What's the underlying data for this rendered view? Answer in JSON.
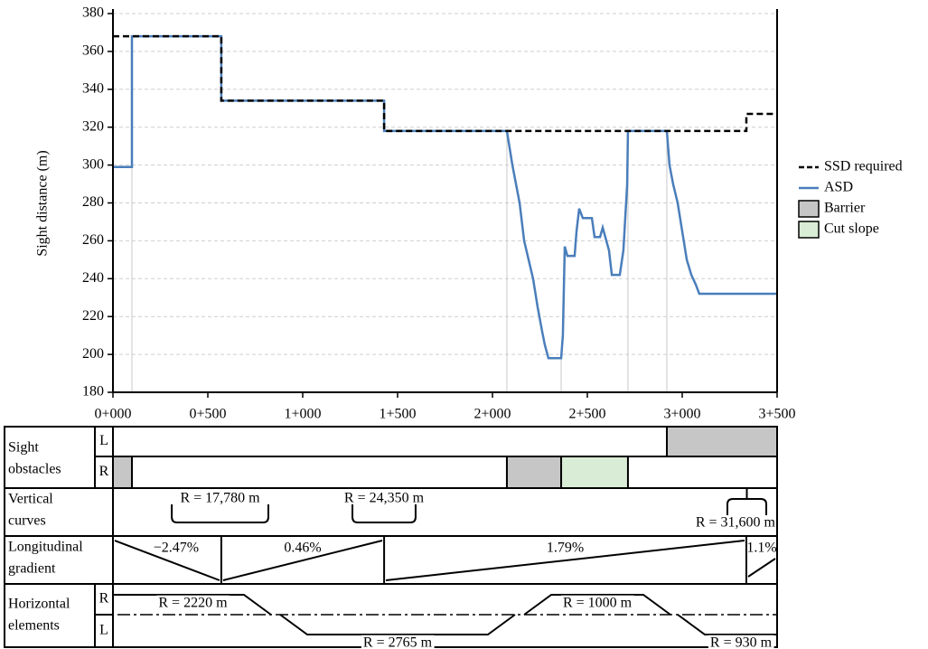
{
  "chart_data": {
    "type": "line",
    "y_label": "Sight distance (m)",
    "xlim": [
      0,
      3500
    ],
    "ylim": [
      180,
      380
    ],
    "xticks": [
      {
        "value": 0,
        "label": "0+000"
      },
      {
        "value": 500,
        "label": "0+500"
      },
      {
        "value": 1000,
        "label": "1+000"
      },
      {
        "value": 1500,
        "label": "1+500"
      },
      {
        "value": 2000,
        "label": "2+000"
      },
      {
        "value": 2500,
        "label": "2+500"
      },
      {
        "value": 3000,
        "label": "3+000"
      },
      {
        "value": 3500,
        "label": "3+500"
      }
    ],
    "yticks": [
      180,
      200,
      220,
      240,
      260,
      280,
      300,
      320,
      340,
      360,
      380
    ],
    "grid": true,
    "reference_x": [
      100,
      2076,
      2362,
      2714,
      2919
    ],
    "series": [
      {
        "name": "SSD required",
        "color": "#000000",
        "dashed": true,
        "x": [
          0,
          571,
          571,
          1429,
          1429,
          3338,
          3338,
          3500
        ],
        "values": [
          368,
          368,
          334,
          334,
          318,
          318,
          327,
          327
        ]
      },
      {
        "name": "ASD",
        "color": "#4a7ebb",
        "dashed": false,
        "x": [
          0,
          100,
          100,
          571,
          571,
          1429,
          1429,
          2076,
          2105,
          2143,
          2167,
          2214,
          2238,
          2262,
          2276,
          2295,
          2362,
          2371,
          2381,
          2395,
          2433,
          2443,
          2457,
          2476,
          2524,
          2538,
          2567,
          2581,
          2614,
          2629,
          2671,
          2690,
          2710,
          2714,
          2919,
          2933,
          2952,
          2976,
          3000,
          3024,
          3048,
          3071,
          3090,
          3500
        ],
        "values": [
          299,
          299,
          368,
          368,
          334,
          334,
          318,
          318,
          300,
          280,
          260,
          240,
          225,
          212,
          205,
          198,
          198,
          210,
          257,
          252,
          252,
          265,
          277,
          272,
          272,
          262,
          262,
          267,
          255,
          242,
          242,
          255,
          290,
          318,
          318,
          300,
          290,
          280,
          265,
          250,
          242,
          237,
          232,
          232
        ]
      }
    ],
    "legend_patches": [
      {
        "name": "Barrier",
        "color": "#c6c6c6"
      },
      {
        "name": "Cut slope",
        "color": "#d9ecd5"
      }
    ]
  },
  "profile": {
    "obstacles_label": [
      "Sight",
      "obstacles"
    ],
    "obstacles": [
      {
        "side": "L",
        "items": [
          {
            "start": 2919,
            "end": 3500,
            "color": "#c6c6c6"
          }
        ]
      },
      {
        "side": "R",
        "items": [
          {
            "start": 0,
            "end": 100,
            "color": "#c6c6c6"
          },
          {
            "start": 2076,
            "end": 2362,
            "color": "#c6c6c6"
          },
          {
            "start": 2362,
            "end": 2714,
            "color": "#d9ecd5"
          }
        ]
      }
    ],
    "vertical_label": [
      "Vertical",
      "curves"
    ],
    "vertical_curves": [
      {
        "label": "R = 17,780 m",
        "start": 310,
        "end": 819,
        "shape": "sag"
      },
      {
        "label": "R = 24,350 m",
        "start": 1262,
        "end": 1595,
        "shape": "sag"
      },
      {
        "label": "R = 31,600 m",
        "start": 3238,
        "end": 3443,
        "shape": "crest"
      }
    ],
    "gradient_label": [
      "Longitudinal",
      "gradient"
    ],
    "gradients": [
      {
        "value": -2.47,
        "label": "−2.47%",
        "start": 0,
        "end": 571
      },
      {
        "value": 0.46,
        "label": "0.46%",
        "start": 571,
        "end": 1429
      },
      {
        "value": 1.79,
        "label": "1.79%",
        "start": 1429,
        "end": 3338
      },
      {
        "value": 1.1,
        "label": "1.1%",
        "start": 3338,
        "end": 3500
      }
    ],
    "horizontal_label": [
      "Horizontal",
      "elements"
    ],
    "horizontal_sides": [
      "R",
      "L"
    ],
    "horizontal_curves": [
      {
        "side": "R",
        "label": "R = 2220 m",
        "start": 0,
        "end": 690
      },
      {
        "side": "L",
        "label": "R = 2765 m",
        "start": 1024,
        "end": 1976
      },
      {
        "side": "R",
        "label": "R = 1000 m",
        "start": 2310,
        "end": 2795
      },
      {
        "side": "L",
        "label": "R = 930 m",
        "start": 3119,
        "end": 3500
      }
    ]
  }
}
